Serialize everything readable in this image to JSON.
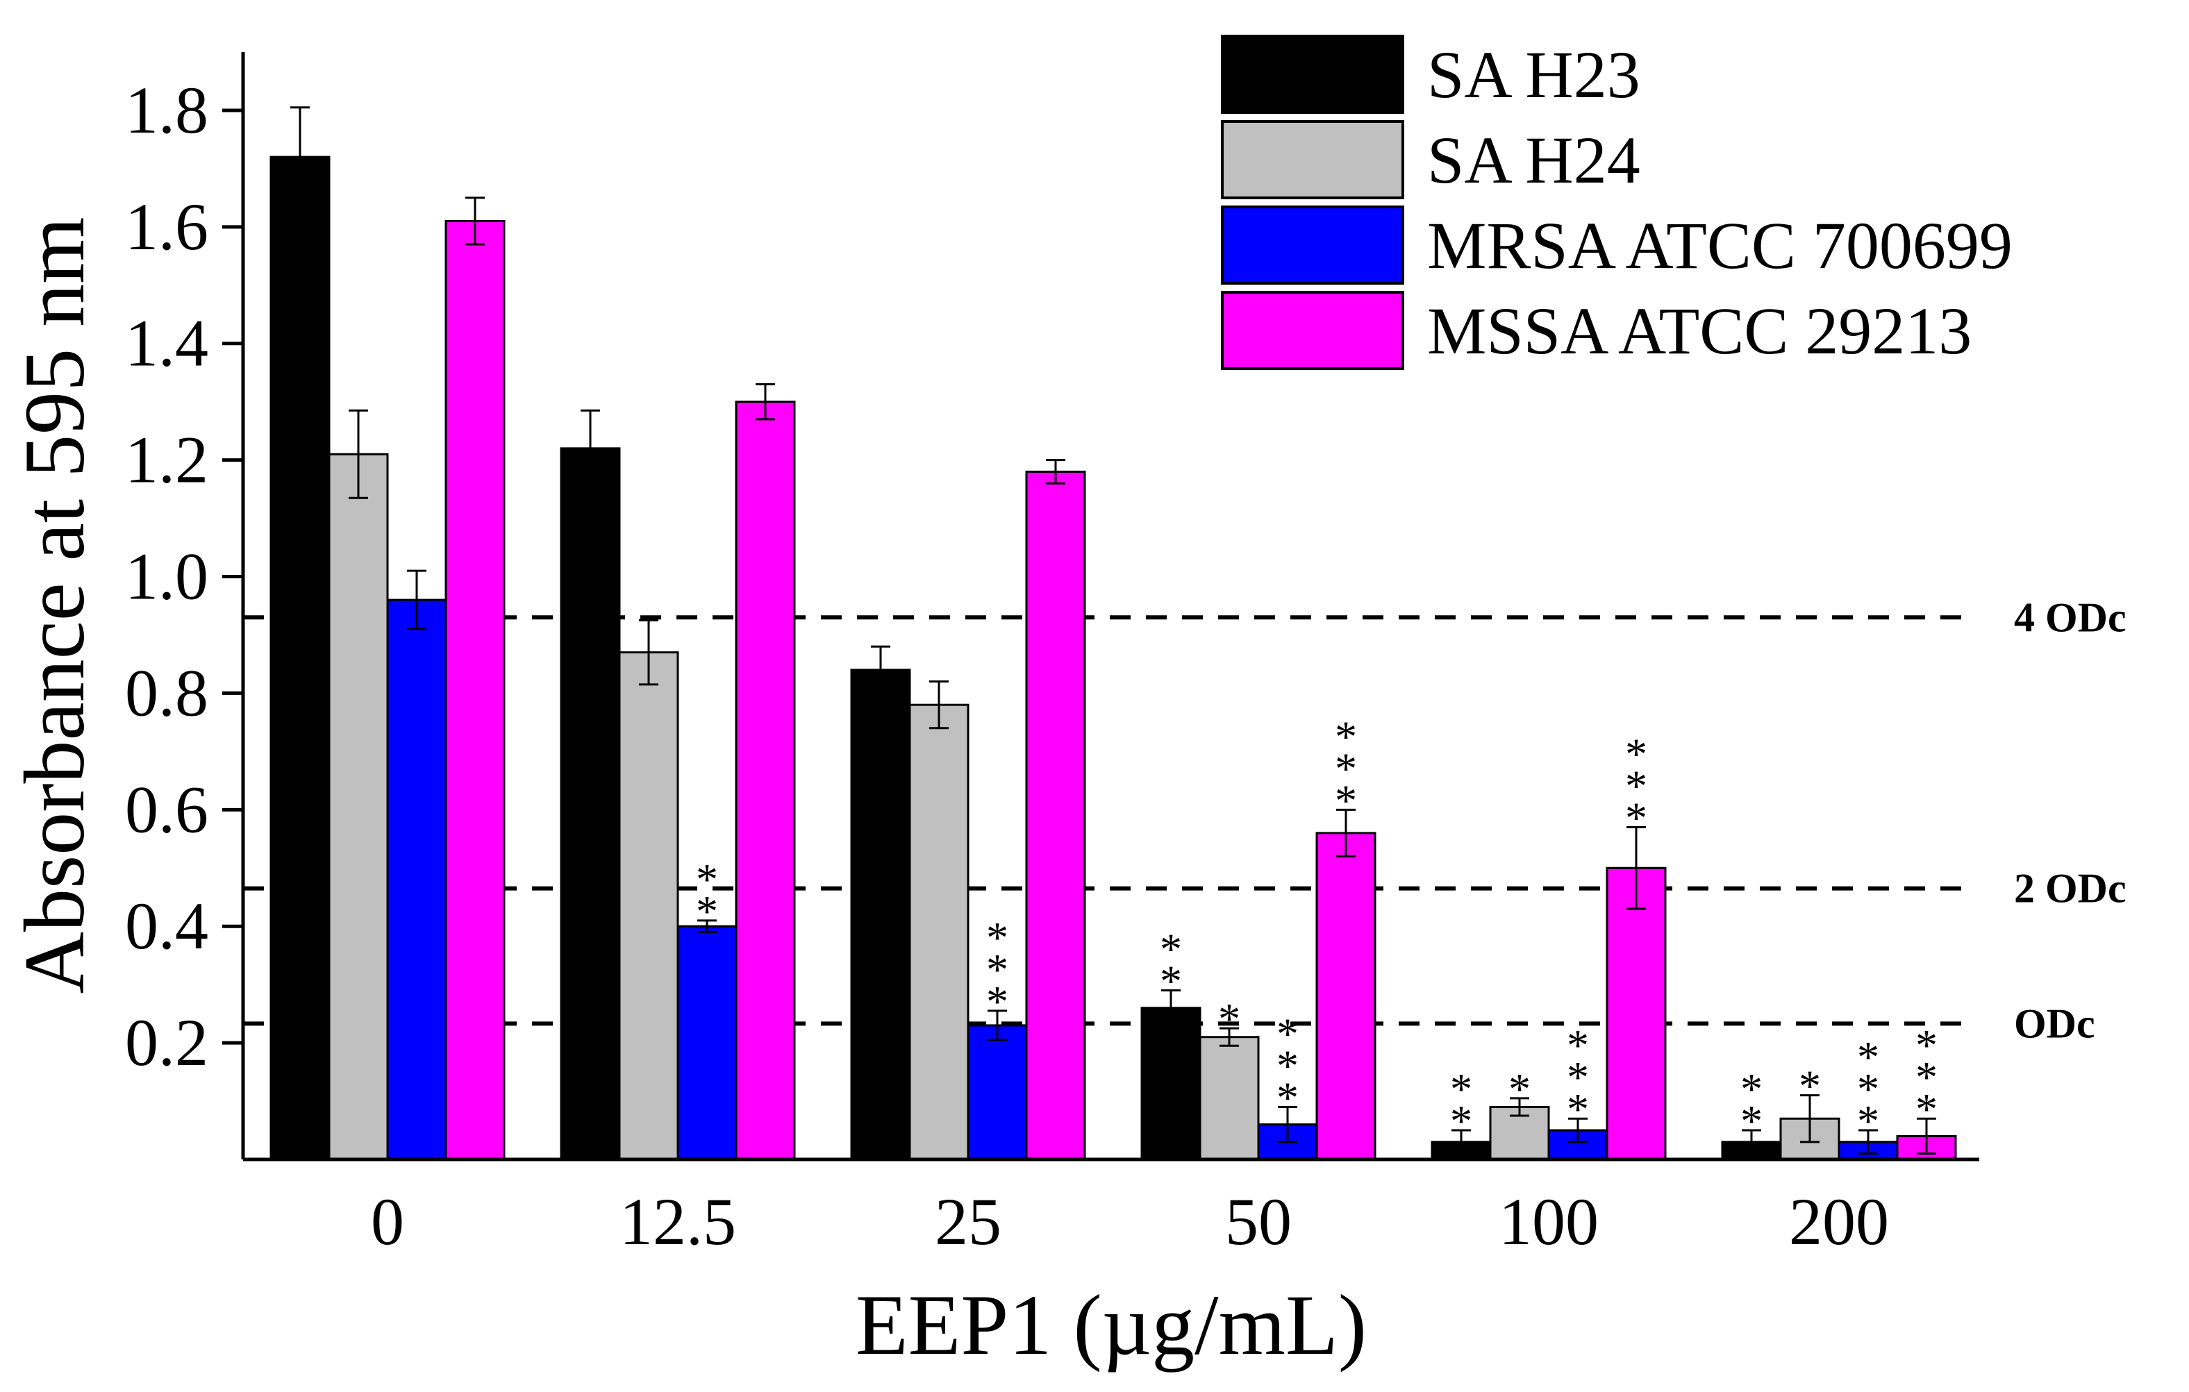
{
  "chart_data": {
    "type": "bar",
    "xlabel": "EEP1 (µg/mL)",
    "ylabel": "Absorbance at 595 nm",
    "ylim": [
      0,
      1.9
    ],
    "yticks": [
      0.2,
      0.4,
      0.6,
      0.8,
      1.0,
      1.2,
      1.4,
      1.6,
      1.8
    ],
    "ytick_labels": [
      "0.2",
      "0.4",
      "0.6",
      "0.8",
      "1.0",
      "1.2",
      "1.4",
      "1.6",
      "1.8"
    ],
    "categories": [
      "0",
      "12.5",
      "25",
      "50",
      "100",
      "200"
    ],
    "series": [
      {
        "name": "SA H23",
        "color": "#000000",
        "values": [
          1.72,
          1.22,
          0.84,
          0.26,
          0.03,
          0.03
        ],
        "errors": [
          0.085,
          0.065,
          0.04,
          0.03,
          0.02,
          0.02
        ],
        "significance": [
          "",
          "",
          "",
          "**",
          "**",
          "**"
        ]
      },
      {
        "name": "SA H24",
        "color": "#c0c0c0",
        "values": [
          1.21,
          0.87,
          0.78,
          0.21,
          0.09,
          0.07
        ],
        "errors": [
          0.075,
          0.055,
          0.04,
          0.015,
          0.015,
          0.04
        ],
        "significance": [
          "",
          "",
          "",
          "*",
          "*",
          "*"
        ]
      },
      {
        "name": "MRSA ATCC 700699",
        "color": "#0000ff",
        "values": [
          0.96,
          0.4,
          0.23,
          0.06,
          0.05,
          0.03
        ],
        "errors": [
          0.05,
          0.01,
          0.025,
          0.03,
          0.02,
          0.02
        ],
        "significance": [
          "",
          "**",
          "***",
          "***",
          "***",
          "***"
        ]
      },
      {
        "name": "MSSA ATCC 29213",
        "color": "#ff00ff",
        "values": [
          1.61,
          1.3,
          1.18,
          0.56,
          0.5,
          0.04
        ],
        "errors": [
          0.04,
          0.03,
          0.02,
          0.04,
          0.07,
          0.03
        ],
        "significance": [
          "",
          "",
          "",
          "***",
          "***",
          "***"
        ]
      }
    ],
    "reference_lines": [
      {
        "label": "4 ODc",
        "value": 0.93
      },
      {
        "label": "2 ODc",
        "value": 0.465
      },
      {
        "label": "ODc",
        "value": 0.233
      }
    ],
    "legend_position": "top-right"
  }
}
